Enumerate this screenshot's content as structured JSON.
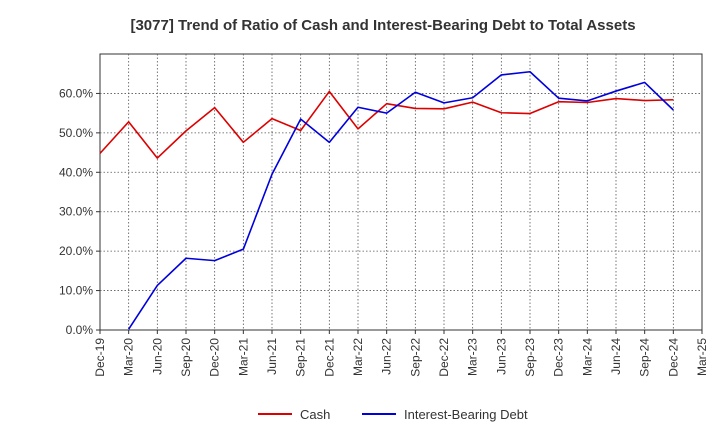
{
  "chart_data": {
    "type": "line",
    "title": "[3077]  Trend of Ratio of Cash and Interest-Bearing Debt to Total Assets",
    "xlabel": "",
    "ylabel": "",
    "ylim": [
      0,
      70
    ],
    "yticks": [
      0,
      10,
      20,
      30,
      40,
      50,
      60
    ],
    "ytick_labels": [
      "0.0%",
      "10.0%",
      "20.0%",
      "30.0%",
      "40.0%",
      "50.0%",
      "60.0%"
    ],
    "categories": [
      "Dec-19",
      "Mar-20",
      "Jun-20",
      "Sep-20",
      "Dec-20",
      "Mar-21",
      "Jun-21",
      "Sep-21",
      "Dec-21",
      "Mar-22",
      "Jun-22",
      "Sep-22",
      "Dec-22",
      "Mar-23",
      "Jun-23",
      "Sep-23",
      "Dec-23",
      "Mar-24",
      "Jun-24",
      "Sep-24",
      "Dec-24",
      "Mar-25"
    ],
    "grid": true,
    "legend_position": "bottom",
    "series": [
      {
        "name": "Cash",
        "color": "#dd0000",
        "values": [
          44.8,
          52.8,
          43.6,
          50.5,
          56.4,
          47.6,
          53.6,
          50.6,
          60.5,
          51.0,
          57.4,
          56.2,
          56.1,
          57.8,
          55.1,
          54.9,
          57.9,
          57.7,
          58.7,
          58.2,
          58.4,
          null
        ]
      },
      {
        "name": "Interest-Bearing Debt",
        "color": "#0000dd",
        "values": [
          null,
          0.2,
          11.3,
          18.2,
          17.6,
          20.5,
          39.5,
          53.5,
          47.6,
          56.5,
          55.0,
          60.3,
          57.6,
          58.9,
          64.7,
          65.5,
          58.8,
          58.1,
          60.6,
          62.8,
          55.8,
          null
        ]
      }
    ]
  }
}
